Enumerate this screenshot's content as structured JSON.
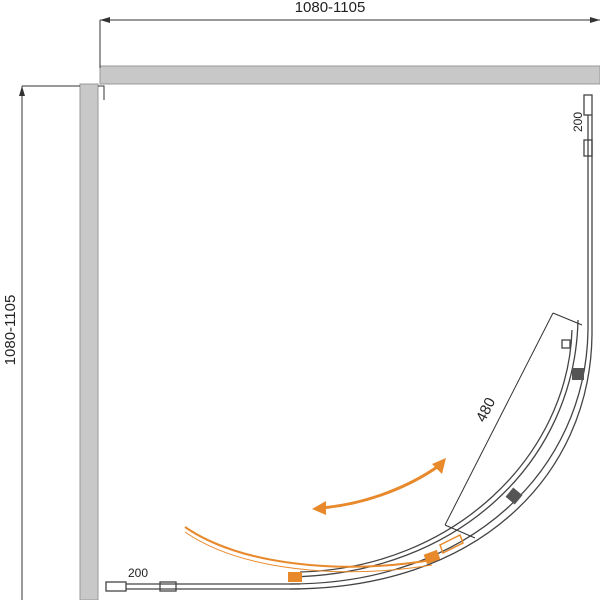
{
  "dimensions": {
    "width": "1080-1105",
    "depth": "1080-1105",
    "fixed_panel_right": "200",
    "door_width": "480",
    "fixed_panel_bottom": "200"
  }
}
